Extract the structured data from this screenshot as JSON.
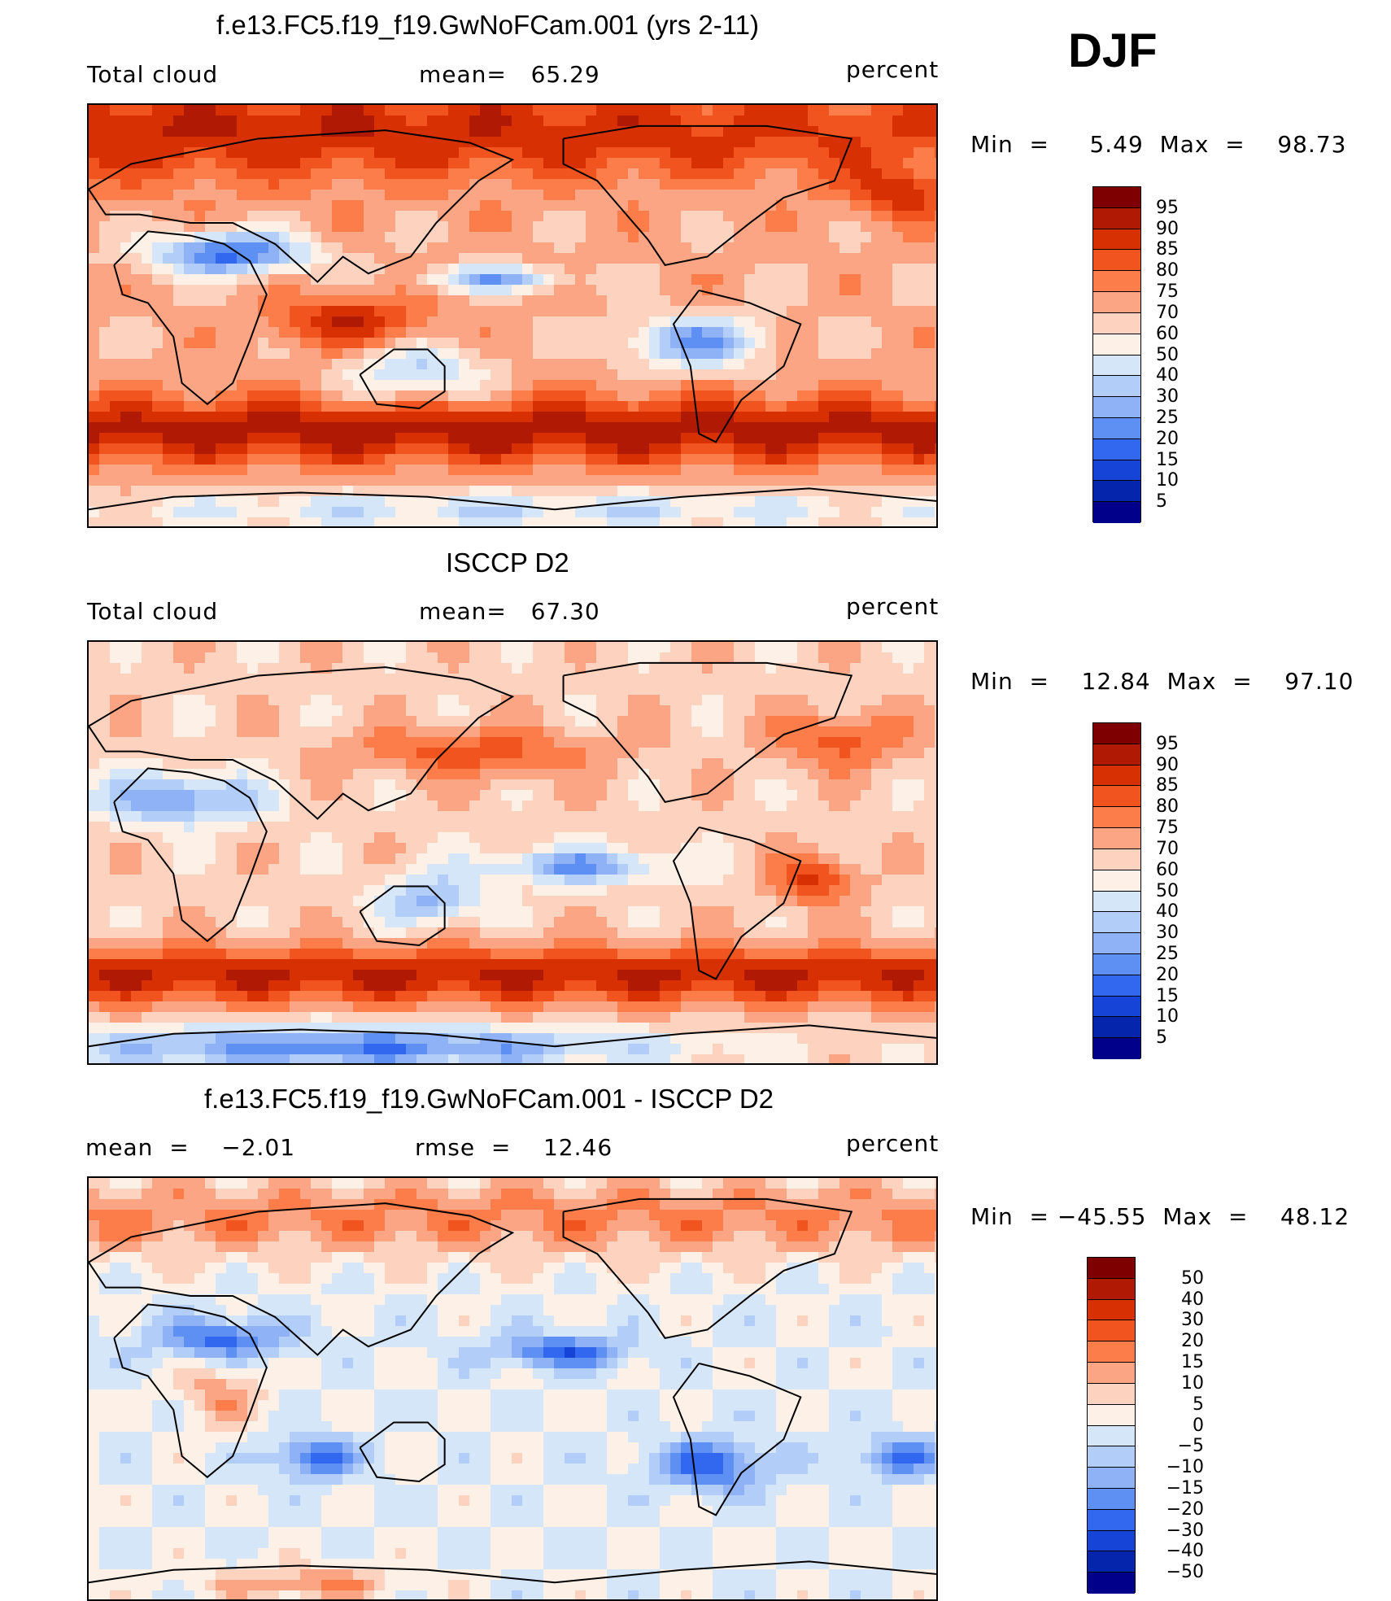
{
  "season": "DJF",
  "panels": [
    {
      "title": "f.e13.FC5.f19_f19.GwNoFCam.001 (yrs 2-11)",
      "left_label": "Total cloud",
      "mid_label": "mean=   65.29",
      "units": "percent",
      "minmax": "Min  =     5.49  Max  =    98.73",
      "colorbar": {
        "labels": [
          "95",
          "90",
          "85",
          "80",
          "75",
          "70",
          "60",
          "50",
          "40",
          "30",
          "25",
          "20",
          "15",
          "10",
          "5"
        ],
        "colors": [
          "#7f0000",
          "#b01a05",
          "#d63003",
          "#f2541f",
          "#fc7c4a",
          "#fca584",
          "#fdd3c0",
          "#fdf0e6",
          "#d6e6f9",
          "#b2cdf7",
          "#8eb2f5",
          "#5e8ff2",
          "#3268ef",
          "#1544d6",
          "#0525ad",
          "#00008b"
        ]
      },
      "map_scheme": "total_model"
    },
    {
      "title": "ISCCP D2",
      "left_label": "Total cloud",
      "mid_label": "mean=   67.30",
      "units": "percent",
      "minmax": "Min  =    12.84  Max  =    97.10",
      "colorbar": {
        "labels": [
          "95",
          "90",
          "85",
          "80",
          "75",
          "70",
          "60",
          "50",
          "40",
          "30",
          "25",
          "20",
          "15",
          "10",
          "5"
        ],
        "colors": [
          "#7f0000",
          "#b01a05",
          "#d63003",
          "#f2541f",
          "#fc7c4a",
          "#fca584",
          "#fdd3c0",
          "#fdf0e6",
          "#d6e6f9",
          "#b2cdf7",
          "#8eb2f5",
          "#5e8ff2",
          "#3268ef",
          "#1544d6",
          "#0525ad",
          "#00008b"
        ]
      },
      "map_scheme": "total_obs"
    },
    {
      "title": "f.e13.FC5.f19_f19.GwNoFCam.001 - ISCCP D2",
      "left_label": "mean  =    −2.01",
      "mid_label": "rmse  =    12.46",
      "units": "percent",
      "minmax": "Min  = −45.55  Max  =    48.12",
      "colorbar": {
        "labels": [
          "50",
          "40",
          "30",
          "20",
          "15",
          "10",
          "5",
          "0",
          "−5",
          "−10",
          "−15",
          "−20",
          "−30",
          "−40",
          "−50"
        ],
        "colors": [
          "#7f0000",
          "#b01a05",
          "#d63003",
          "#f2541f",
          "#fc7c4a",
          "#fca584",
          "#fdd3c0",
          "#fdf0e6",
          "#d6e6f9",
          "#b2cdf7",
          "#8eb2f5",
          "#5e8ff2",
          "#3268ef",
          "#1544d6",
          "#0525ad",
          "#00008b"
        ]
      },
      "map_scheme": "difference"
    }
  ]
}
